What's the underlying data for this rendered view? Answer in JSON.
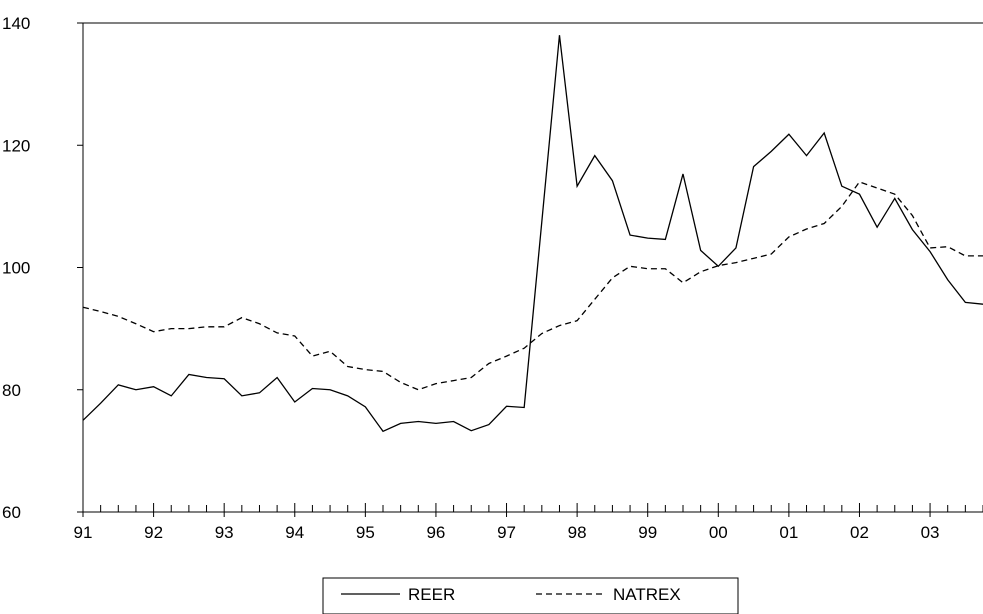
{
  "chart_data": {
    "type": "line",
    "title": "",
    "xlabel": "",
    "ylabel": "",
    "ylim": [
      60,
      140
    ],
    "yticks": [
      60,
      80,
      100,
      120,
      140
    ],
    "xlim": [
      1991.0,
      2003.75
    ],
    "xticks": [
      {
        "x": 1991,
        "label": "91"
      },
      {
        "x": 1992,
        "label": "92"
      },
      {
        "x": 1993,
        "label": "93"
      },
      {
        "x": 1994,
        "label": "94"
      },
      {
        "x": 1995,
        "label": "95"
      },
      {
        "x": 1996,
        "label": "96"
      },
      {
        "x": 1997,
        "label": "97"
      },
      {
        "x": 1998,
        "label": "98"
      },
      {
        "x": 1999,
        "label": "99"
      },
      {
        "x": 2000,
        "label": "00"
      },
      {
        "x": 2001,
        "label": "01"
      },
      {
        "x": 2002,
        "label": "02"
      },
      {
        "x": 2003,
        "label": "03"
      }
    ],
    "grid": false,
    "legend_position": "bottom-center",
    "series": [
      {
        "name": "REER",
        "style": "solid",
        "color": "#000000",
        "points": [
          [
            1991.0,
            75.0
          ],
          [
            1991.25,
            77.8
          ],
          [
            1991.5,
            80.8
          ],
          [
            1991.75,
            80.0
          ],
          [
            1992.0,
            80.5
          ],
          [
            1992.25,
            79.0
          ],
          [
            1992.5,
            82.5
          ],
          [
            1992.75,
            82.0
          ],
          [
            1993.0,
            81.8
          ],
          [
            1993.25,
            79.0
          ],
          [
            1993.5,
            79.5
          ],
          [
            1993.75,
            82.0
          ],
          [
            1994.0,
            78.0
          ],
          [
            1994.25,
            80.2
          ],
          [
            1994.5,
            80.0
          ],
          [
            1994.75,
            79.0
          ],
          [
            1995.0,
            77.2
          ],
          [
            1995.25,
            73.2
          ],
          [
            1995.5,
            74.5
          ],
          [
            1995.75,
            74.8
          ],
          [
            1996.0,
            74.5
          ],
          [
            1996.25,
            74.8
          ],
          [
            1996.5,
            73.3
          ],
          [
            1996.75,
            74.3
          ],
          [
            1997.0,
            77.3
          ],
          [
            1997.25,
            77.1
          ],
          [
            1997.5,
            107.5
          ],
          [
            1997.75,
            138.0
          ],
          [
            1998.0,
            113.3
          ],
          [
            1998.25,
            118.3
          ],
          [
            1998.5,
            114.2
          ],
          [
            1998.75,
            105.3
          ],
          [
            1999.0,
            104.8
          ],
          [
            1999.25,
            104.6
          ],
          [
            1999.5,
            115.3
          ],
          [
            1999.75,
            102.8
          ],
          [
            2000.0,
            100.2
          ],
          [
            2000.25,
            103.2
          ],
          [
            2000.5,
            116.5
          ],
          [
            2000.75,
            119.0
          ],
          [
            2001.0,
            121.8
          ],
          [
            2001.25,
            118.3
          ],
          [
            2001.5,
            122.0
          ],
          [
            2001.75,
            113.3
          ],
          [
            2002.0,
            112.0
          ],
          [
            2002.25,
            106.6
          ],
          [
            2002.5,
            111.3
          ],
          [
            2002.75,
            106.2
          ],
          [
            2003.0,
            102.6
          ],
          [
            2003.25,
            98.0
          ],
          [
            2003.5,
            94.3
          ],
          [
            2003.75,
            94.0
          ]
        ]
      },
      {
        "name": "NATREX",
        "style": "dashed",
        "color": "#000000",
        "points": [
          [
            1991.0,
            93.5
          ],
          [
            1991.25,
            92.8
          ],
          [
            1991.5,
            92.0
          ],
          [
            1991.75,
            90.8
          ],
          [
            1992.0,
            89.5
          ],
          [
            1992.25,
            90.0
          ],
          [
            1992.5,
            90.0
          ],
          [
            1992.75,
            90.3
          ],
          [
            1993.0,
            90.3
          ],
          [
            1993.25,
            91.8
          ],
          [
            1993.5,
            90.8
          ],
          [
            1993.75,
            89.3
          ],
          [
            1994.0,
            88.8
          ],
          [
            1994.25,
            85.5
          ],
          [
            1994.5,
            86.3
          ],
          [
            1994.75,
            83.8
          ],
          [
            1995.0,
            83.3
          ],
          [
            1995.25,
            83.0
          ],
          [
            1995.5,
            81.2
          ],
          [
            1995.75,
            80.0
          ],
          [
            1996.0,
            81.0
          ],
          [
            1996.25,
            81.5
          ],
          [
            1996.5,
            82.0
          ],
          [
            1996.75,
            84.3
          ],
          [
            1997.0,
            85.5
          ],
          [
            1997.25,
            86.8
          ],
          [
            1997.5,
            89.2
          ],
          [
            1997.75,
            90.5
          ],
          [
            1998.0,
            91.3
          ],
          [
            1998.25,
            94.8
          ],
          [
            1998.5,
            98.3
          ],
          [
            1998.75,
            100.2
          ],
          [
            1999.0,
            99.8
          ],
          [
            1999.25,
            99.8
          ],
          [
            1999.5,
            97.5
          ],
          [
            1999.75,
            99.3
          ],
          [
            2000.0,
            100.3
          ],
          [
            2000.25,
            100.8
          ],
          [
            2000.5,
            101.5
          ],
          [
            2000.75,
            102.2
          ],
          [
            2001.0,
            105.0
          ],
          [
            2001.25,
            106.3
          ],
          [
            2001.5,
            107.2
          ],
          [
            2001.75,
            110.0
          ],
          [
            2002.0,
            114.0
          ],
          [
            2002.25,
            113.0
          ],
          [
            2002.5,
            112.0
          ],
          [
            2002.75,
            108.5
          ],
          [
            2003.0,
            103.2
          ],
          [
            2003.25,
            103.4
          ],
          [
            2003.5,
            101.9
          ],
          [
            2003.75,
            101.9
          ]
        ]
      }
    ]
  }
}
